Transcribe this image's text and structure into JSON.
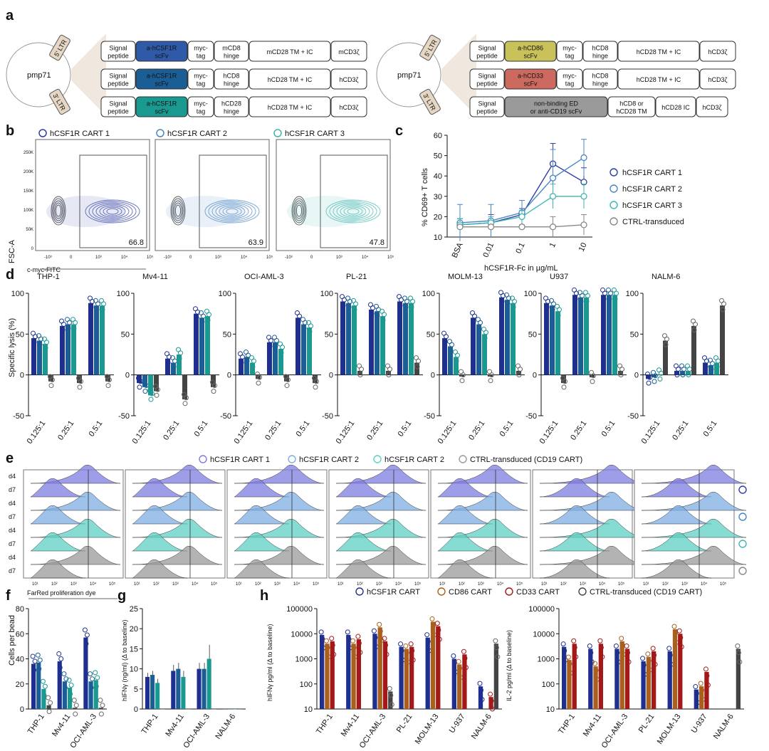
{
  "panel_labels": {
    "a": "a",
    "b": "b",
    "c": "c",
    "d": "d",
    "e": "e",
    "f": "f",
    "g": "g",
    "h": "h"
  },
  "panel_a": {
    "plasmid": "pmp71",
    "ltr5": "5' LTR",
    "ltr3": "3' LTR",
    "left_constructs": [
      [
        {
          "t": "Signal\npeptide",
          "c": "#ffffff"
        },
        {
          "t": "a-hCSF1R\nscFv",
          "c": "#2f5aa8"
        },
        {
          "t": "myc-\ntag",
          "c": "#ffffff"
        },
        {
          "t": "mCD8\nhinge",
          "c": "#ffffff"
        },
        {
          "t": "mCD28 TM + IC",
          "c": "#ffffff"
        },
        {
          "t": "mCD3ζ",
          "c": "#ffffff"
        }
      ],
      [
        {
          "t": "Signal\npeptide",
          "c": "#ffffff"
        },
        {
          "t": "a-hCSF1R\nscFv",
          "c": "#1a5e95"
        },
        {
          "t": "myc-\ntag",
          "c": "#ffffff"
        },
        {
          "t": "hCD8\nhinge",
          "c": "#ffffff"
        },
        {
          "t": "hCD28 TM + IC",
          "c": "#ffffff"
        },
        {
          "t": "hCD3ζ",
          "c": "#ffffff"
        }
      ],
      [
        {
          "t": "Signal\npeptide",
          "c": "#ffffff"
        },
        {
          "t": "a-hCSF1R\nscFv",
          "c": "#1a9991"
        },
        {
          "t": "myc-\ntag",
          "c": "#ffffff"
        },
        {
          "t": "hCD28\nhinge",
          "c": "#ffffff"
        },
        {
          "t": "hCD28 TM + IC",
          "c": "#ffffff"
        },
        {
          "t": "hCD3ζ",
          "c": "#ffffff"
        }
      ]
    ],
    "right_constructs": [
      [
        {
          "t": "Signal\npeptide",
          "c": "#ffffff"
        },
        {
          "t": "a-hCD86\nscFv",
          "c": "#c9c25a"
        },
        {
          "t": "myc-\ntag",
          "c": "#ffffff"
        },
        {
          "t": "hCD8\nhinge",
          "c": "#ffffff"
        },
        {
          "t": "hCD28 TM + IC",
          "c": "#ffffff"
        },
        {
          "t": "hCD3ζ",
          "c": "#ffffff"
        }
      ],
      [
        {
          "t": "Signal\npeptide",
          "c": "#ffffff"
        },
        {
          "t": "a-hCD33\nscFv",
          "c": "#cc6a5f"
        },
        {
          "t": "myc-\ntag",
          "c": "#ffffff"
        },
        {
          "t": "hCD8\nhinge",
          "c": "#ffffff"
        },
        {
          "t": "hCD28 TM + IC",
          "c": "#ffffff"
        },
        {
          "t": "hCD3ζ",
          "c": "#ffffff"
        }
      ],
      [
        {
          "t": "Signal\npeptide",
          "c": "#ffffff"
        },
        {
          "t": "non-binding ED\nor anti-CD19 scFv",
          "c": "#9a9a9a"
        },
        {
          "t": "hCD8 or\nhCD28 TM",
          "c": "#ffffff"
        },
        {
          "t": "hCD28 IC",
          "c": "#ffffff"
        },
        {
          "t": "hCD3ζ",
          "c": "#ffffff"
        }
      ]
    ]
  },
  "panel_b": {
    "legend": [
      "hCSF1R CART 1",
      "hCSF1R CART 2",
      "hCSF1R CART 3"
    ],
    "colors": [
      "#2e3ea6",
      "#4a86c6",
      "#3fb6b0"
    ],
    "percentages": [
      "66.8",
      "63.9",
      "47.8"
    ],
    "y_label": "FSC-A",
    "x_label": "c-myc-FITC",
    "y_ticks": [
      "250K",
      "200K",
      "150K",
      "100K",
      "50K",
      "0"
    ],
    "x_ticks": [
      "-10³",
      "0",
      "10³",
      "10⁴",
      "10⁵"
    ]
  },
  "chart_data": [
    {
      "type": "line",
      "id": "c",
      "ylabel": "% CD69+ T cells",
      "xlabel": "hCSF1R-Fc in µg/mL",
      "categories": [
        "BSA",
        "0.01",
        "0.1",
        "1",
        "10"
      ],
      "ylim": [
        10,
        60
      ],
      "yticks": [
        10,
        20,
        30,
        40,
        50,
        60
      ],
      "series": [
        {
          "name": "hCSF1R CART 1",
          "color": "#2e3ea6",
          "values": [
            16,
            17,
            21,
            46,
            37
          ],
          "errors": [
            3,
            4,
            3,
            10,
            7
          ]
        },
        {
          "name": "hCSF1R CART 2",
          "color": "#4a86c6",
          "values": [
            17,
            18,
            22,
            39,
            49
          ],
          "errors": [
            9,
            8,
            6,
            14,
            9
          ]
        },
        {
          "name": "hCSF1R CART 3",
          "color": "#3fb6b0",
          "values": [
            16,
            17,
            20,
            30,
            30
          ],
          "errors": [
            3,
            3,
            3,
            6,
            6
          ]
        },
        {
          "name": "CTRL-transduced",
          "color": "#888888",
          "values": [
            15,
            15,
            15,
            15,
            16
          ],
          "errors": [
            1,
            1,
            1,
            5,
            5
          ]
        }
      ]
    },
    {
      "type": "bar",
      "id": "d",
      "ylabel": "Specific lysis (%)",
      "ylim": [
        -50,
        100
      ],
      "yticks": [
        -50,
        0,
        50,
        100
      ],
      "categories": [
        "0.125:1",
        "0.25:1",
        "0.5:1"
      ],
      "series_colors": [
        "#1e2f8f",
        "#1a5e95",
        "#1a9991",
        "#444444"
      ],
      "panels": [
        {
          "title": "THP-1",
          "values": [
            [
              45,
              42,
              38,
              -8
            ],
            [
              60,
              62,
              62,
              -10
            ],
            [
              88,
              85,
              85,
              -8
            ]
          ]
        },
        {
          "title": "Mv4-11",
          "values": [
            [
              -10,
              -15,
              -25,
              -20
            ],
            [
              20,
              15,
              25,
              -30
            ],
            [
              75,
              70,
              72,
              -15
            ]
          ]
        },
        {
          "title": "OCI-AML-3",
          "values": [
            [
              20,
              22,
              15,
              -5
            ],
            [
              40,
              40,
              32,
              -8
            ],
            [
              70,
              62,
              58,
              -10
            ]
          ]
        },
        {
          "title": "PL-21",
          "values": [
            [
              90,
              88,
              85,
              5
            ],
            [
              80,
              78,
              72,
              5
            ],
            [
              90,
              88,
              88,
              15
            ]
          ]
        },
        {
          "title": "MOLM-13",
          "values": [
            [
              45,
              35,
              22,
              -2
            ],
            [
              70,
              62,
              50,
              -2
            ],
            [
              95,
              92,
              88,
              5
            ]
          ]
        },
        {
          "title": "U937",
          "values": [
            [
              88,
              85,
              78,
              -10
            ],
            [
              98,
              95,
              95,
              -3
            ],
            [
              98,
              98,
              98,
              5
            ]
          ]
        },
        {
          "title": "NALM-6",
          "values": [
            [
              -5,
              -3,
              0,
              42
            ],
            [
              5,
              5,
              5,
              60
            ],
            [
              15,
              12,
              15,
              85
            ]
          ]
        }
      ]
    },
    {
      "type": "bar",
      "id": "f",
      "ylabel": "Cells per bead",
      "ylim": [
        0,
        80
      ],
      "yticks": [
        0,
        20,
        40,
        60,
        80
      ],
      "categories": [
        "THP-1",
        "Mv4-11",
        "OCI-AML-3"
      ],
      "series_colors": [
        "#1e2f8f",
        "#1a5e95",
        "#1a9991",
        "#444444"
      ],
      "values": [
        [
          36,
          37,
          16,
          3
        ],
        [
          38,
          22,
          17,
          1
        ],
        [
          57,
          22,
          23,
          1
        ]
      ]
    },
    {
      "type": "bar",
      "id": "g",
      "ylabel": "hIFNγ (ng/ml) (Δ to baseline)",
      "ylim": [
        0,
        25
      ],
      "yticks": [
        0,
        5,
        10,
        15,
        20,
        25
      ],
      "categories": [
        "THP-1",
        "Mv4-11",
        "OCI-AML-3",
        "NALM-6"
      ],
      "series_colors": [
        "#1e2f8f",
        "#1a5e95",
        "#1a9991",
        "#444444"
      ],
      "values": [
        [
          8,
          8.5,
          6.5,
          0
        ],
        [
          9.5,
          10,
          8,
          0
        ],
        [
          10,
          10,
          12.5,
          0
        ],
        [
          0,
          0,
          0,
          0
        ]
      ],
      "errors": [
        [
          1,
          1,
          1,
          0
        ],
        [
          1.5,
          1.5,
          1.5,
          0
        ],
        [
          1.5,
          1.5,
          3.5,
          0
        ],
        [
          0,
          0,
          0,
          0
        ]
      ]
    },
    {
      "type": "bar",
      "id": "h-left",
      "log": true,
      "ylabel": "hIFNγ pg/ml (Δ to baseline)",
      "ylim": [
        10,
        100000
      ],
      "yticks": [
        "10",
        "100",
        "1000",
        "10000",
        "100000"
      ],
      "categories": [
        "THP-1",
        "Mv4-11",
        "OCI-AML-3",
        "PL-21",
        "MOLM-13",
        "U-937",
        "NALM-6"
      ],
      "series_colors": [
        "#1e2f8f",
        "#a8601c",
        "#a31818",
        "#444444"
      ],
      "values": [
        [
          9000,
          4000,
          5000,
          0
        ],
        [
          9000,
          4000,
          6000,
          0
        ],
        [
          10000,
          18000,
          5000,
          50
        ],
        [
          3000,
          2500,
          3000,
          0
        ],
        [
          7000,
          30000,
          20000,
          0
        ],
        [
          1000,
          600,
          1500,
          0
        ],
        [
          80,
          0,
          30,
          4000
        ]
      ]
    },
    {
      "type": "bar",
      "id": "h-right",
      "log": true,
      "ylabel": "IL-2 pg/ml (Δ to baseline)",
      "ylim": [
        10,
        100000
      ],
      "yticks": [
        "10",
        "100",
        "1000",
        "10000",
        "100000"
      ],
      "categories": [
        "THP-1",
        "Mv4-11",
        "OCI-AML-3",
        "PL-21",
        "MOLM-13",
        "U-937",
        "NALM-6"
      ],
      "series_colors": [
        "#1e2f8f",
        "#a8601c",
        "#a31818",
        "#444444"
      ],
      "values": [
        [
          3000,
          900,
          4000,
          0
        ],
        [
          2500,
          500,
          4000,
          0
        ],
        [
          2500,
          5000,
          2500,
          0
        ],
        [
          800,
          1200,
          2000,
          0
        ],
        [
          2000,
          15000,
          10000,
          0
        ],
        [
          60,
          80,
          300,
          0
        ],
        [
          0,
          0,
          0,
          2500
        ]
      ]
    }
  ],
  "panel_d_title_ylabel": "Specific lysis (%)",
  "panel_e": {
    "legend": [
      "hCSF1R CART 1",
      "hCSF1R CART 2",
      "hCSF1R CART 2",
      "CTRL-transduced (CD19 CART)"
    ],
    "colors": [
      "#7e7ce0",
      "#7eaee2",
      "#5ecfc4",
      "#9a9a9a"
    ],
    "row_labels": [
      "d4",
      "d7",
      "d4",
      "d7",
      "d4",
      "d7",
      "d4",
      "d7"
    ],
    "x_label": "FarRed proliferation dye",
    "x_ticks": [
      "10¹",
      "10²",
      "10³",
      "10⁴",
      "10⁵"
    ]
  },
  "panel_h": {
    "legend": [
      "hCSF1R CART",
      "CD86 CART",
      "CD33 CART",
      "CTRL-transduced (CD19 CART)"
    ],
    "colors": [
      "#1e2f8f",
      "#a8601c",
      "#a31818",
      "#444444"
    ]
  }
}
